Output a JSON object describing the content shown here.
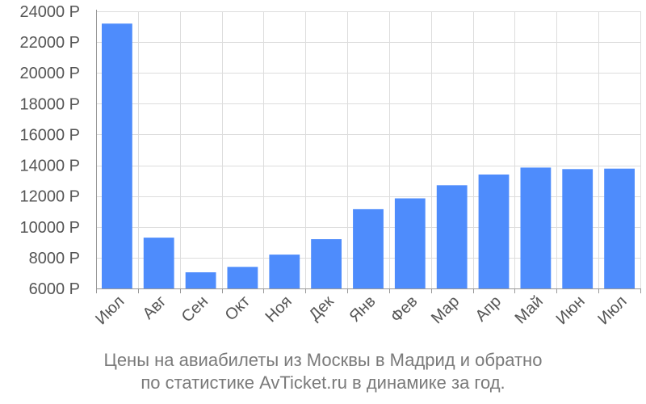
{
  "chart_data": {
    "type": "bar",
    "categories": [
      "Июл",
      "Авг",
      "Сен",
      "Окт",
      "Ноя",
      "Дек",
      "Янв",
      "Фев",
      "Мар",
      "Апр",
      "Май",
      "Июн",
      "Июл"
    ],
    "values": [
      23200,
      9300,
      7050,
      7400,
      8200,
      9200,
      11150,
      11850,
      12700,
      13400,
      13850,
      13750,
      13780
    ],
    "ylim": [
      6000,
      24000
    ],
    "yticks": [
      6000,
      8000,
      10000,
      12000,
      14000,
      16000,
      18000,
      20000,
      22000,
      24000
    ],
    "ytick_labels": [
      "6000 Р",
      "8000 Р",
      "10000 Р",
      "12000 Р",
      "14000 Р",
      "16000 Р",
      "18000 Р",
      "20000 Р",
      "22000 Р",
      "24000 Р"
    ],
    "grid": true,
    "bar_color": "#4e8cfc",
    "caption_line1": "Цены на авиабилеты из Москвы в Мадрид и обратно",
    "caption_line2": "по статистике AvTicket.ru в динамике за год."
  }
}
